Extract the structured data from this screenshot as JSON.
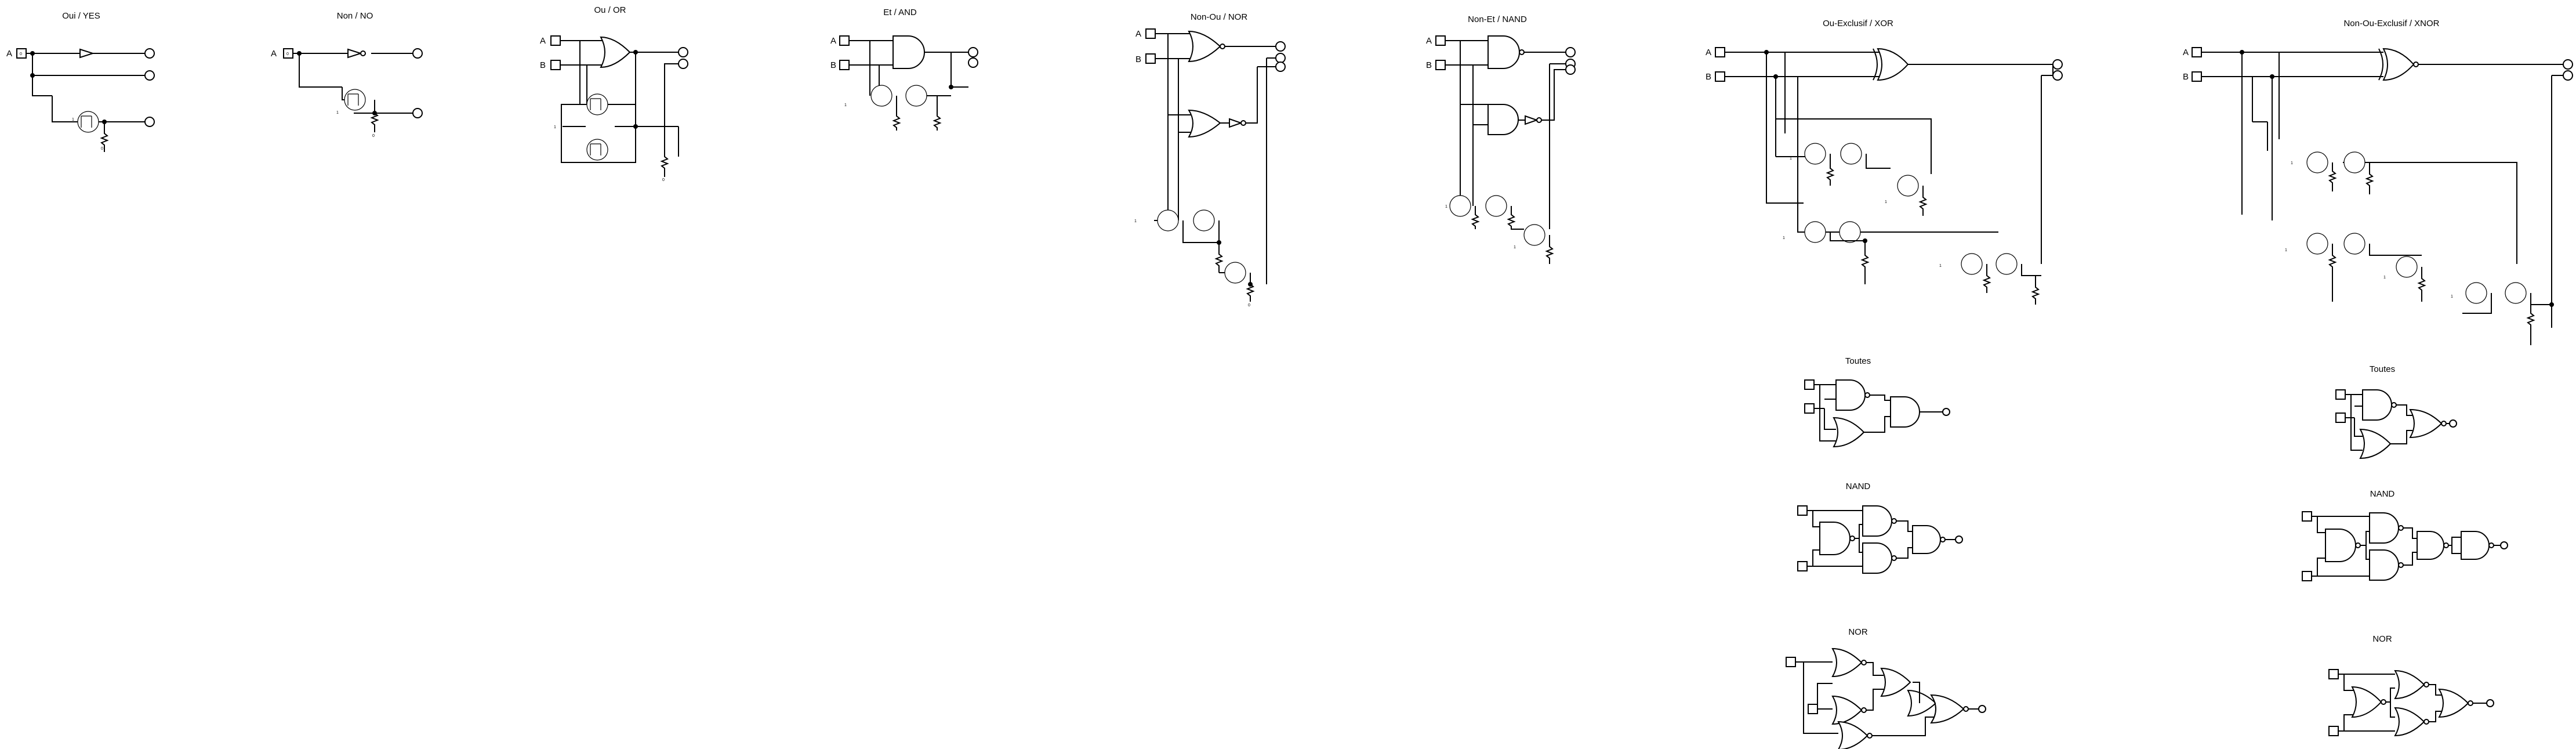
{
  "colors": {
    "background": "#ffffff",
    "ink": "#000000"
  },
  "sections": [
    {
      "id": "yes",
      "title": "Oui / YES"
    },
    {
      "id": "no",
      "title": "Non / NO"
    },
    {
      "id": "or",
      "title": "Ou / OR"
    },
    {
      "id": "and",
      "title": "Et / AND"
    },
    {
      "id": "nor",
      "title": "Non-Ou / NOR"
    },
    {
      "id": "nand",
      "title": "Non-Et / NAND"
    },
    {
      "id": "xor",
      "title": "Ou-Exclusif / XOR"
    },
    {
      "id": "xnor",
      "title": "Non-Ou-Exclusif / XNOR"
    }
  ],
  "sub_titles": {
    "xor_all": "Toutes",
    "xor_nand": "NAND",
    "xor_nor": "NOR",
    "xnor_all": "Toutes",
    "xnor_nand": "NAND",
    "xnor_nor": "NOR"
  },
  "input_labels": {
    "a": "A",
    "b": "B"
  },
  "pin_value": "0",
  "transistor_text": "1",
  "ground_text": "0"
}
